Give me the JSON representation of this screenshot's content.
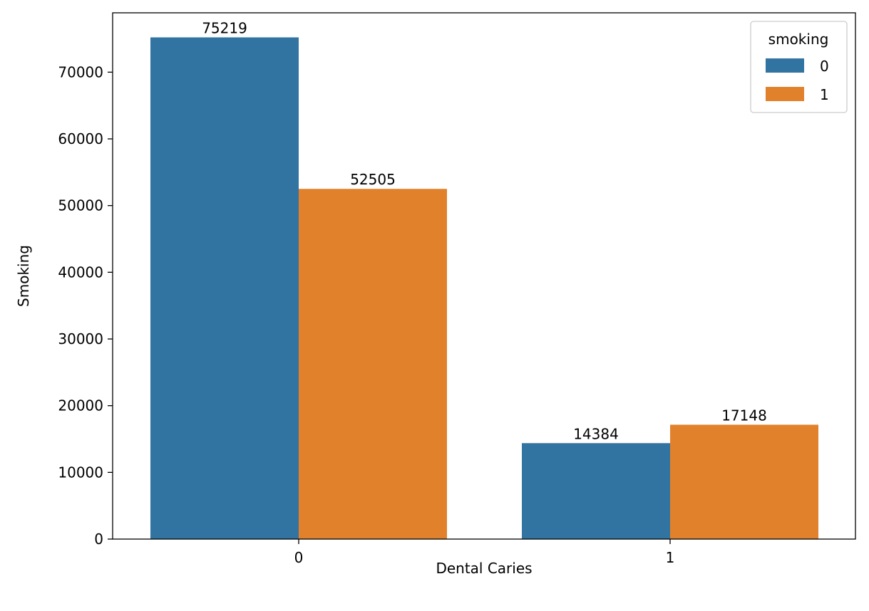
{
  "chart_data": {
    "type": "bar",
    "title": "",
    "xlabel": "Dental Caries",
    "ylabel": "Smoking",
    "categories": [
      "0",
      "1"
    ],
    "series": [
      {
        "name": "0",
        "color": "#3274a1",
        "values": [
          75219,
          14384
        ]
      },
      {
        "name": "1",
        "color": "#e1812c",
        "values": [
          52505,
          17148
        ]
      }
    ],
    "data_labels": [
      [
        "75219",
        "14384"
      ],
      [
        "52505",
        "17148"
      ]
    ],
    "ylim": [
      0,
      78900
    ],
    "yticks": [
      0,
      10000,
      20000,
      30000,
      40000,
      50000,
      60000,
      70000
    ],
    "ytick_labels": [
      "0",
      "10000",
      "20000",
      "30000",
      "40000",
      "50000",
      "60000",
      "70000"
    ],
    "legend": {
      "title": "smoking",
      "placement": "top-right"
    },
    "grid": false
  }
}
